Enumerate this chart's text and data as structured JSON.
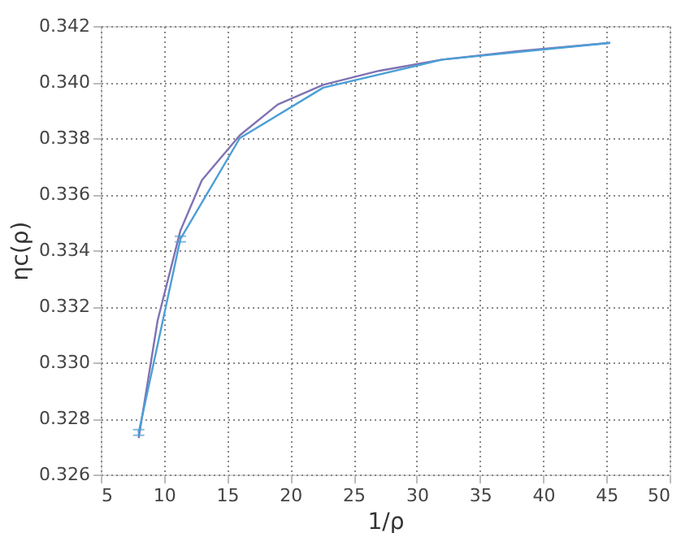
{
  "chart_data": {
    "type": "line",
    "xlabel": "1/ρ",
    "ylabel": "ηc(ρ)",
    "series": [
      {
        "color": "#8172b2",
        "x": [
          8,
          9.5,
          11.3,
          13,
          16,
          19,
          22.6,
          27,
          32,
          38,
          45.3
        ],
        "values": [
          0.3273,
          0.3315,
          0.3347,
          0.3365,
          0.3381,
          0.3392,
          0.3399,
          0.3404,
          0.3408,
          0.3411,
          0.3414
        ]
      },
      {
        "color": "#4c9fd6",
        "x": [
          8,
          11.3,
          16,
          22.6,
          32,
          45.3
        ],
        "values": [
          0.3275,
          0.3344,
          0.338,
          0.3398,
          0.3408,
          0.3414
        ],
        "errors": [
          0.0001,
          0.0001,
          null,
          null,
          null,
          null
        ]
      }
    ],
    "xlim": [
      5,
      50
    ],
    "xticks": [
      5,
      10,
      15,
      20,
      25,
      30,
      35,
      40,
      45,
      50
    ],
    "ylim": [
      0.326,
      0.342
    ],
    "yticks": [
      0.326,
      0.328,
      {
        "value": 0.33,
        "label": "0.330"
      },
      0.332,
      0.334,
      0.336,
      0.338,
      {
        "value": 0.34,
        "label": "0.340"
      },
      0.342
    ],
    "grid": true,
    "marker": "none",
    "line_style": "solid"
  }
}
